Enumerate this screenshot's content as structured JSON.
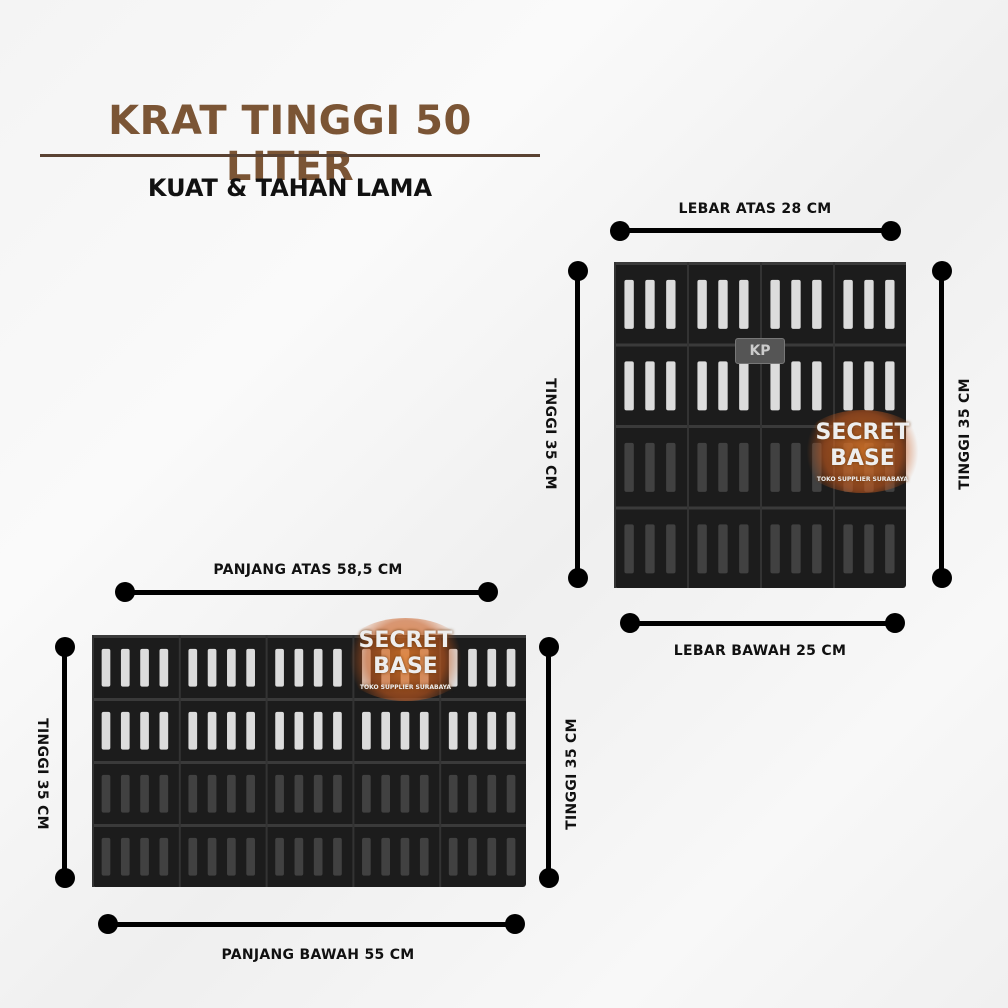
{
  "header": {
    "title": "KRAT TINGGI 50 LITER",
    "subtitle": "KUAT & TAHAN LAMA"
  },
  "side_view": {
    "top_width": "LEBAR ATAS 28 CM",
    "bottom_width": "LEBAR BAWAH 25 CM",
    "height_left": "TINGGI 35 CM",
    "height_right": "TINGGI 35 CM",
    "brand_plate": "KP"
  },
  "front_view": {
    "top_length": "PANJANG ATAS 58,5 CM",
    "bottom_length": "PANJANG BAWAH 55 CM",
    "height_left": "TINGGI 35 CM",
    "height_right": "TINGGI 35 CM"
  },
  "watermark": {
    "line1": "SECRET",
    "line2": "BASE",
    "tagline": "TOKO SUPPLIER SURABAYA"
  },
  "colors": {
    "title": "#7b5535",
    "crate": "#1c1c1c",
    "line": "#000000"
  }
}
